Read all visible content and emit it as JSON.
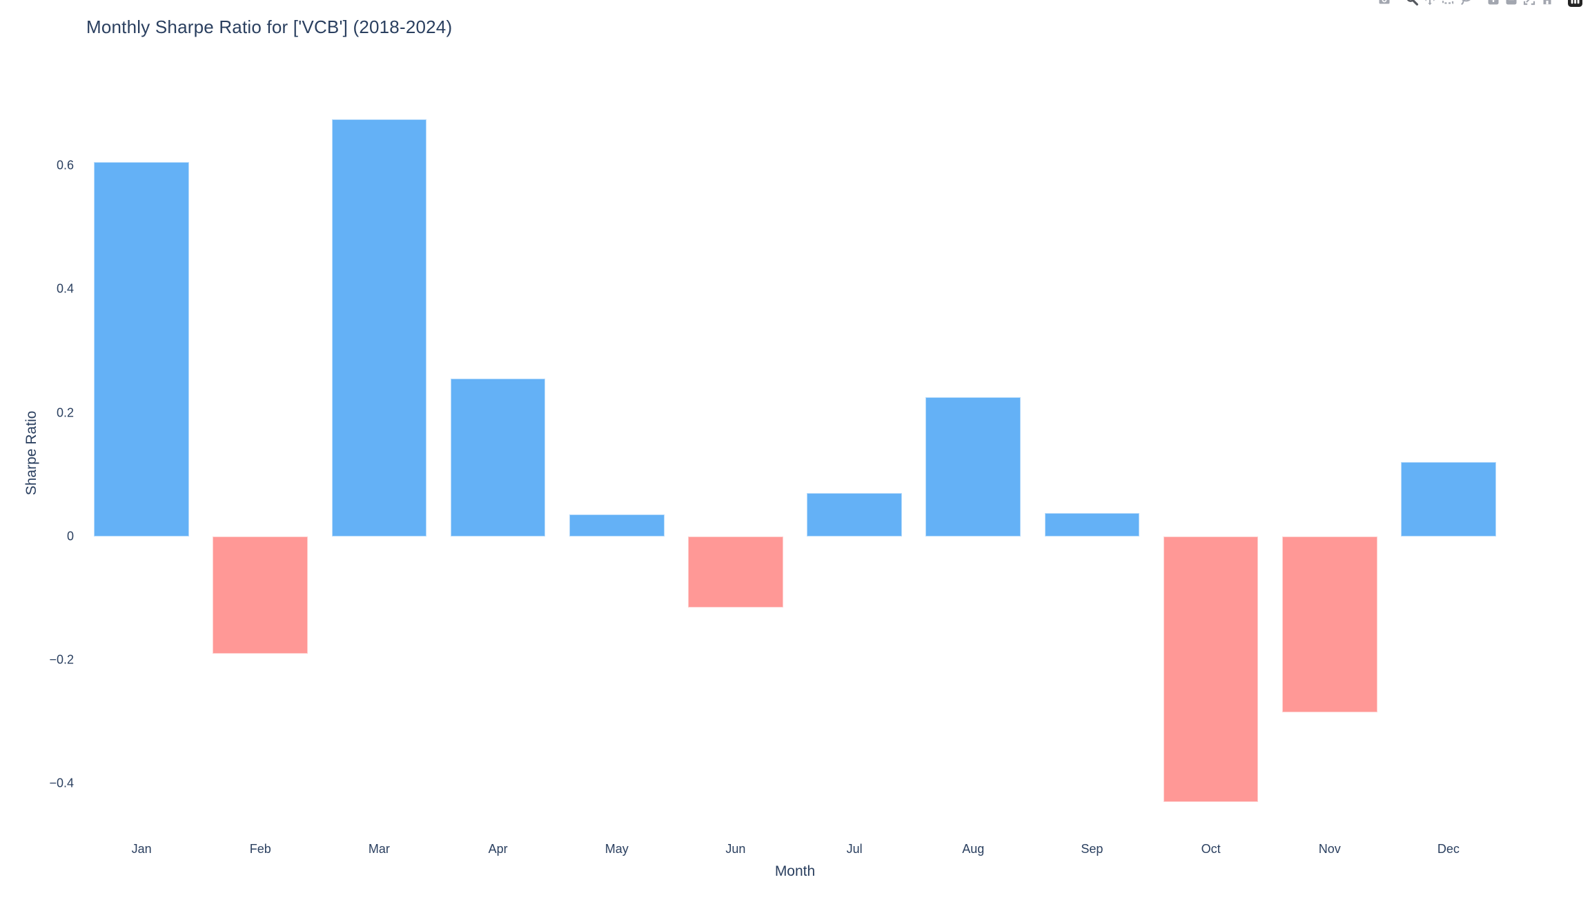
{
  "title": "Monthly Sharpe Ratio for ['VCB'] (2018-2024)",
  "colors": {
    "text": "#2a3f5f",
    "background": "#ffffff",
    "positive_bar": "#64b1f6",
    "negative_bar": "#ff9896",
    "modebar_icon": "#a2a6af",
    "modebar_icon_active": "#55585e",
    "plotly_logo": "#242424"
  },
  "modebar": {
    "buttons": [
      {
        "name": "download-plot",
        "icon": "camera-icon",
        "group": 0,
        "active": false
      },
      {
        "name": "zoom",
        "icon": "magnifier-icon",
        "group": 1,
        "active": true
      },
      {
        "name": "pan",
        "icon": "pan-arrows-icon",
        "group": 1,
        "active": false
      },
      {
        "name": "box-select",
        "icon": "box-select-icon",
        "group": 1,
        "active": false
      },
      {
        "name": "lasso-select",
        "icon": "lasso-icon",
        "group": 1,
        "active": false
      },
      {
        "name": "zoom-in",
        "icon": "zoom-in-icon",
        "group": 2,
        "active": false
      },
      {
        "name": "zoom-out",
        "icon": "zoom-out-icon",
        "group": 2,
        "active": false
      },
      {
        "name": "autoscale",
        "icon": "autoscale-icon",
        "group": 2,
        "active": false
      },
      {
        "name": "reset-axes",
        "icon": "home-icon",
        "group": 2,
        "active": false
      },
      {
        "name": "plotly-logomark",
        "icon": "plotly-logo-icon",
        "group": 3,
        "active": false
      }
    ]
  },
  "chart_data": {
    "type": "bar",
    "title": "Monthly Sharpe Ratio for ['VCB'] (2018-2024)",
    "xlabel": "Month",
    "ylabel": "Sharpe Ratio",
    "categories": [
      "Jan",
      "Feb",
      "Mar",
      "Apr",
      "May",
      "Jun",
      "Jul",
      "Aug",
      "Sep",
      "Oct",
      "Nov",
      "Dec"
    ],
    "values": [
      0.605,
      -0.19,
      0.675,
      0.255,
      0.035,
      -0.115,
      0.07,
      0.225,
      0.038,
      -0.43,
      -0.285,
      0.12
    ],
    "positive_color": "#64b1f6",
    "negative_color": "#ff9896",
    "yticks": [
      0.6,
      0.4,
      0.2,
      0,
      -0.2,
      -0.4
    ],
    "ylim": [
      -0.471,
      0.745
    ],
    "grid": false,
    "legend": "none",
    "bar_width_fraction": 0.8
  }
}
